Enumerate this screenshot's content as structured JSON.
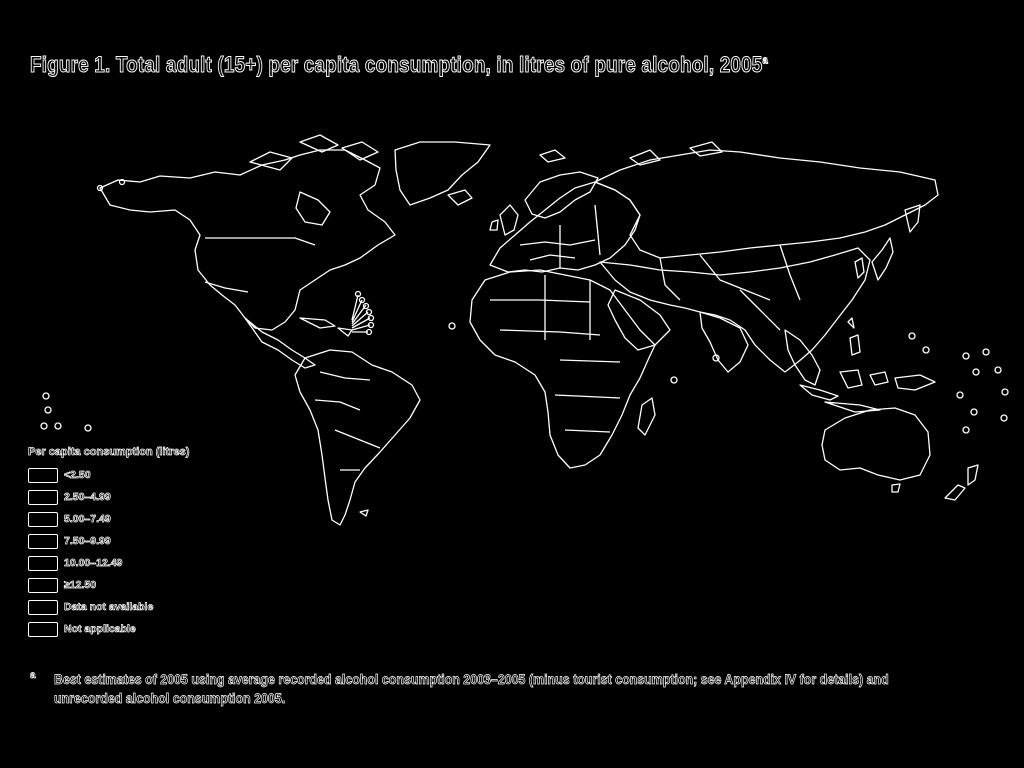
{
  "figure": {
    "title": "Figure 1. Total adult (15+) per capita consumption, in litres of pure alcohol, 2005",
    "title_superscript": "a"
  },
  "legend": {
    "title": "Per capita consumption (litres)",
    "items": [
      {
        "label": "<2.50"
      },
      {
        "label": "2.50–4.99"
      },
      {
        "label": "5.00–7.49"
      },
      {
        "label": "7.50–9.99"
      },
      {
        "label": "10.00–12.49"
      },
      {
        "label": "≥12.50"
      },
      {
        "label": "Data not available"
      },
      {
        "label": "Not applicable"
      }
    ]
  },
  "footnote": {
    "marker": "a",
    "text": "Best estimates of 2005 using average recorded alcohol consumption 2003–2005 (minus tourist consumption; see Appendix IV for details) and unrecorded alcohol consumption 2005."
  },
  "style": {
    "background": "#000000",
    "outline_color": "#ffffff"
  }
}
